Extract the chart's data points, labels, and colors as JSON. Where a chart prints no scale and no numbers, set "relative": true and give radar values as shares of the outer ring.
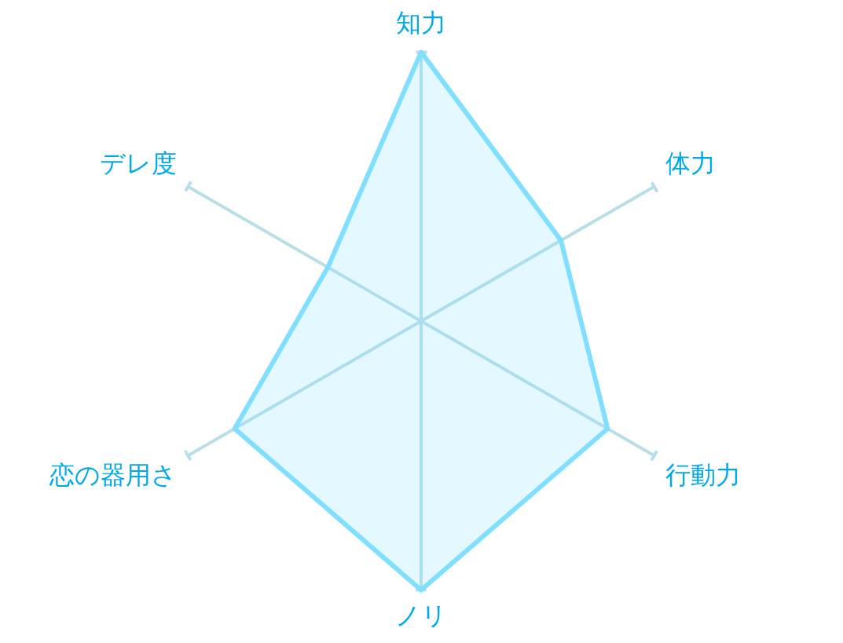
{
  "chart_data": {
    "type": "radar",
    "categories": [
      "知力",
      "体力",
      "行動力",
      "ノリ",
      "恋の器用さ",
      "デレ度"
    ],
    "relative": true,
    "series": [
      {
        "color": "#80dfff",
        "values": [
          1,
          0.6,
          0.8,
          1,
          0.8,
          0.4
        ]
      }
    ],
    "grid": true
  }
}
